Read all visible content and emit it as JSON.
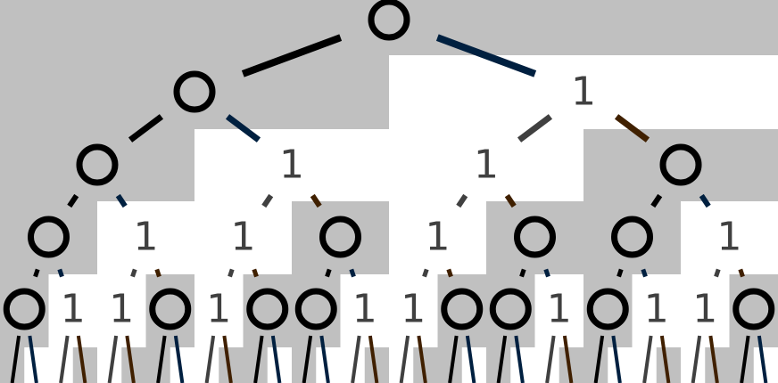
{
  "tree": {
    "levels": [
      [
        "0"
      ],
      [
        "0",
        "1"
      ],
      [
        "0",
        "1",
        "1",
        "0"
      ],
      [
        "0",
        "1",
        "1",
        "0",
        "1",
        "0",
        "0",
        "1"
      ],
      [
        "0",
        "1",
        "1",
        "0",
        "1",
        "0",
        "0",
        "1",
        "1",
        "0",
        "0",
        "1",
        "0",
        "1",
        "1",
        "0"
      ]
    ]
  },
  "colors": {
    "background": "#ffffff",
    "shade": "#c0c0c0",
    "zero_node": "#000000",
    "one_node": "#404040",
    "edge_to_zero_left": "#000000",
    "edge_to_one_left": "#404040",
    "edge_to_one_right": "#002040",
    "edge_to_zero_right": "#402000"
  }
}
